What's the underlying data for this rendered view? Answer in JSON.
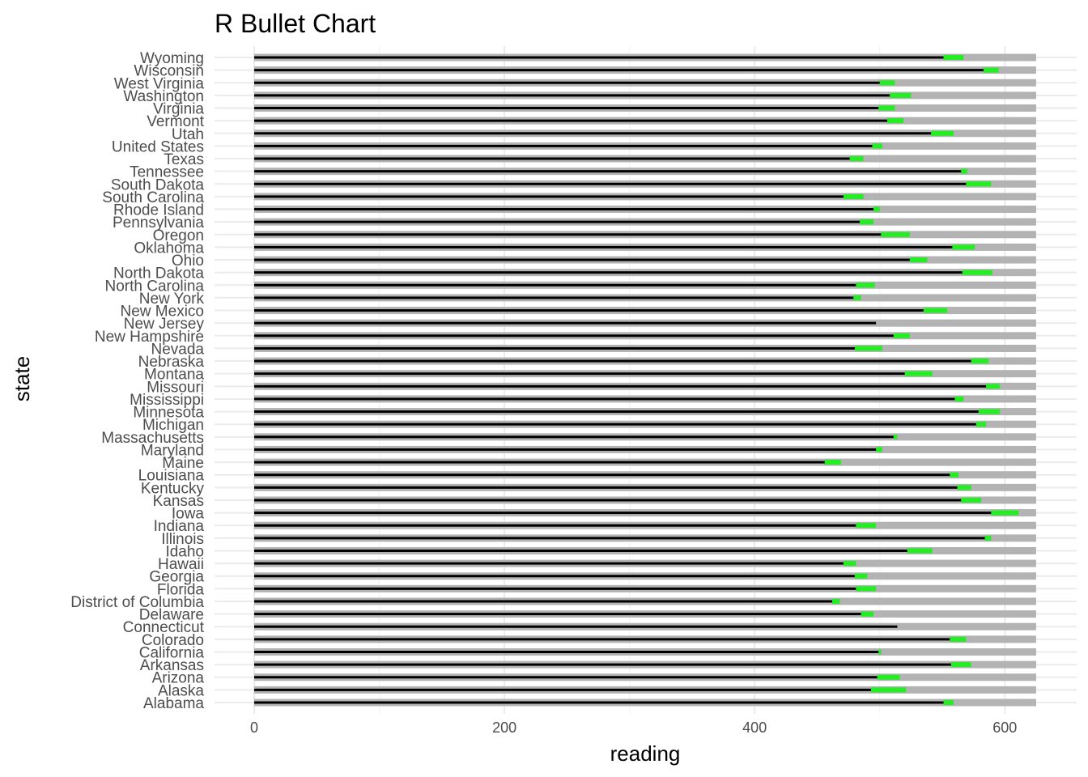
{
  "chart_data": {
    "type": "bar",
    "subtype": "bullet",
    "title": "R Bullet Chart",
    "xlabel": "reading",
    "ylabel": "state",
    "xlim": [
      0,
      625
    ],
    "xticks": [
      0,
      200,
      400,
      600
    ],
    "grid": true,
    "colors": {
      "background_range": "#b3b3b3",
      "target_range": "#22ee22",
      "value": "#000000",
      "grid": "#ebebeb"
    },
    "categories": [
      "Wyoming",
      "Wisconsin",
      "West Virginia",
      "Washington",
      "Virginia",
      "Vermont",
      "Utah",
      "United States",
      "Texas",
      "Tennessee",
      "South Dakota",
      "South Carolina",
      "Rhode Island",
      "Pennsylvania",
      "Oregon",
      "Oklahoma",
      "Ohio",
      "North Dakota",
      "North Carolina",
      "New York",
      "New Mexico",
      "New Jersey",
      "New Hampshire",
      "Nevada",
      "Nebraska",
      "Montana",
      "Missouri",
      "Mississippi",
      "Minnesota",
      "Michigan",
      "Massachusetts",
      "Maryland",
      "Maine",
      "Louisiana",
      "Kentucky",
      "Kansas",
      "Iowa",
      "Indiana",
      "Illinois",
      "Idaho",
      "Hawaii",
      "Georgia",
      "Florida",
      "District of Columbia",
      "Delaware",
      "Connecticut",
      "Colorado",
      "California",
      "Arkansas",
      "Arizona",
      "Alaska",
      "Alabama"
    ],
    "series": [
      {
        "name": "value",
        "values": [
          551,
          583,
          500,
          508,
          499,
          506,
          541,
          494,
          476,
          565,
          569,
          471,
          495,
          484,
          501,
          558,
          524,
          566,
          481,
          479,
          535,
          497,
          511,
          480,
          573,
          520,
          585,
          560,
          579,
          577,
          511,
          497,
          456,
          556,
          562,
          565,
          589,
          481,
          584,
          522,
          471,
          480,
          481,
          462,
          485,
          514,
          556,
          499,
          557,
          498,
          493,
          551
        ]
      },
      {
        "name": "target_low",
        "values": [
          551,
          583,
          500,
          508,
          499,
          506,
          541,
          494,
          476,
          565,
          569,
          471,
          495,
          484,
          501,
          558,
          524,
          566,
          481,
          479,
          535,
          497,
          511,
          480,
          573,
          520,
          585,
          560,
          579,
          577,
          511,
          497,
          456,
          556,
          562,
          565,
          589,
          481,
          584,
          522,
          471,
          480,
          481,
          462,
          485,
          514,
          556,
          499,
          557,
          498,
          493,
          551
        ]
      },
      {
        "name": "target_high",
        "values": [
          567,
          595,
          512,
          525,
          512,
          519,
          559,
          502,
          487,
          570,
          589,
          487,
          500,
          495,
          524,
          576,
          538,
          590,
          496,
          485,
          554,
          497,
          524,
          502,
          587,
          542,
          596,
          567,
          596,
          585,
          514,
          502,
          469,
          563,
          573,
          581,
          611,
          497,
          589,
          542,
          481,
          490,
          497,
          468,
          495,
          514,
          569,
          501,
          573,
          516,
          521,
          559
        ]
      },
      {
        "name": "range",
        "values": [
          625,
          625,
          625,
          625,
          625,
          625,
          625,
          625,
          625,
          625,
          625,
          625,
          625,
          625,
          625,
          625,
          625,
          625,
          625,
          625,
          625,
          625,
          625,
          625,
          625,
          625,
          625,
          625,
          625,
          625,
          625,
          625,
          625,
          625,
          625,
          625,
          625,
          625,
          625,
          625,
          625,
          625,
          625,
          625,
          625,
          625,
          625,
          625,
          625,
          625,
          625,
          625
        ]
      }
    ]
  }
}
